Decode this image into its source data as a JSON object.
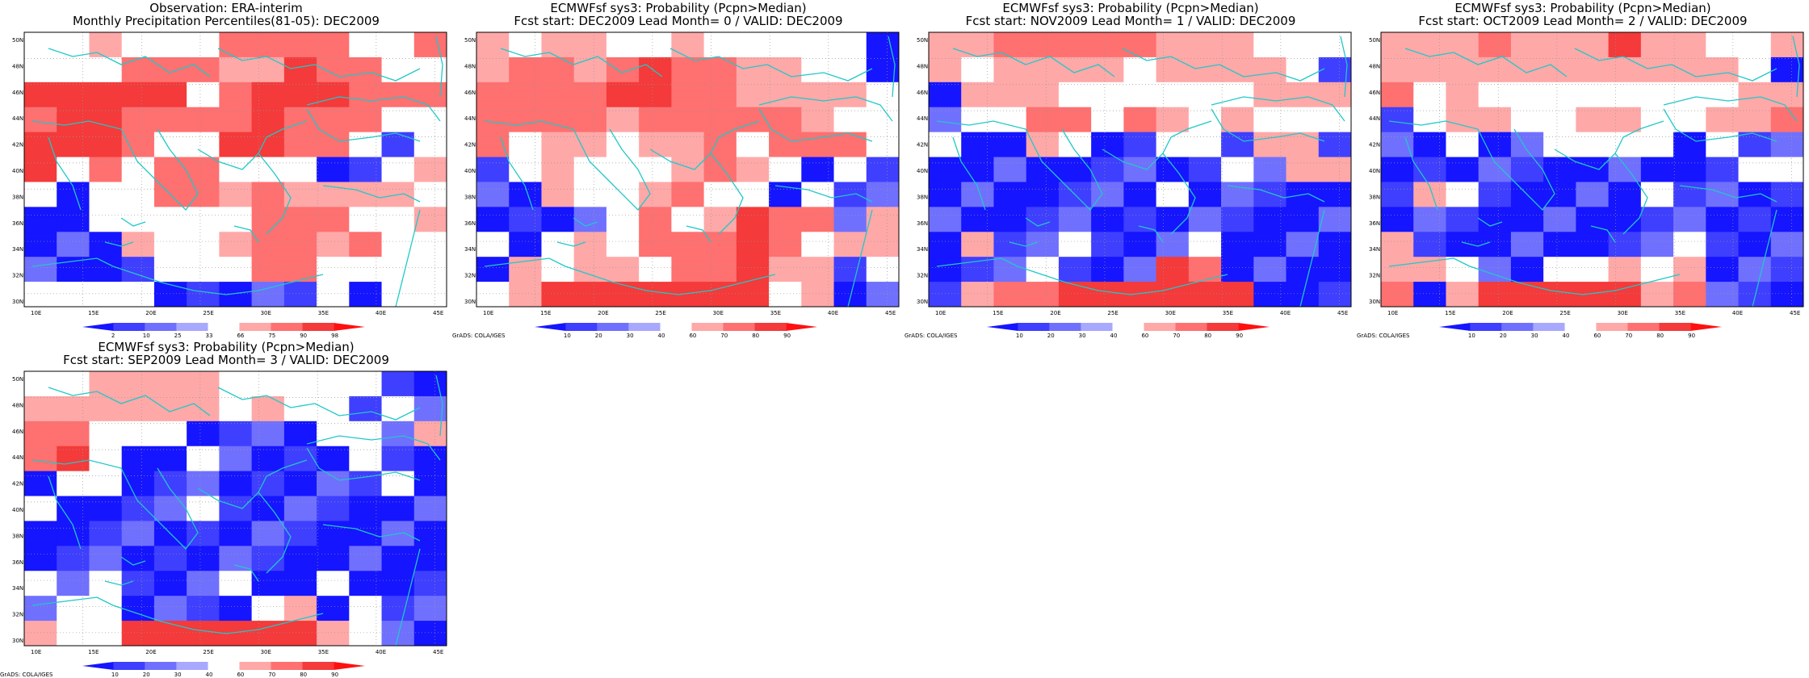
{
  "palette": {
    "deep_blue": "#1515ff",
    "blue": "#3f3fff",
    "med_blue": "#7070ff",
    "light_blue": "#a8a8ff",
    "white": "#ffffff",
    "light_red": "#ffa8a8",
    "med_red": "#ff7070",
    "red": "#f43a3a",
    "deep_red": "#ff1010",
    "coast": "#20c8c8"
  },
  "lat_labels": [
    "50N",
    "48N",
    "46N",
    "44N",
    "42N",
    "40N",
    "38N",
    "36N",
    "34N",
    "32N",
    "30N"
  ],
  "lon_labels": [
    "10E",
    "15E",
    "20E",
    "25E",
    "30E",
    "35E",
    "40E",
    "45E"
  ],
  "credit": "GrADS: COLA/IGES",
  "panels": [
    {
      "id": "obs",
      "title1": "Observation: ERA-interim",
      "title2": "Monthly Precipitation Percentiles(81-05): DEC2009",
      "legend": [
        "2",
        "10",
        "25",
        "33",
        "66",
        "75",
        "90",
        "98"
      ],
      "grid": [
        "AA1AAA2222AA2",
        "AAA22211322AA",
        "33333A2333222",
        "23322223222AA",
        "3332AA3322A0A",
        "3A2A22AAA00A1",
        "A0AA22121111A",
        "00AAAAA222AA1",
        "0001AA12212AA",
        "0000AAA22AAAA",
        "AAAA00000A0AA"
      ]
    },
    {
      "id": "lead0",
      "title1": "ECMWFsf sys3: Probability (Pcpn>Median)",
      "title2": "Fcst start: DEC2009  Lead Month= 0 / VALID: DEC2009",
      "legend": [
        "10",
        "20",
        "30",
        "40",
        "60",
        "70",
        "80",
        "90"
      ],
      "grid": [
        "1A11AA1AAAAA0",
        "1221232211AA0",
        "222233221111A",
        "22221222221AA",
        "2A11A112A222A",
        "0A1AAA121A0A0",
        "001AA12AA0A00",
        "0000A2A132201",
        "A0A1A22232A11",
        "01A11A223110A",
        "A13333333A100"
      ]
    },
    {
      "id": "lead1",
      "title1": "ECMWFsf sys3: Probability (Pcpn>Median)",
      "title2": "Fcst start: NOV2009  Lead Month= 1 / VALID: DEC2009",
      "legend": [
        "10",
        "20",
        "30",
        "40",
        "60",
        "70",
        "80",
        "90"
      ],
      "grid": [
        "1122222111AAA",
        "1A1111A1111A0",
        "0111AAAAAA111",
        "0AA22A21A1AAA",
        "A001A00AA0110",
        "000000000A011",
        "0000000A00000",
        "0000000000000",
        "0100A000A0000",
        "000A000320000",
        "0122333333000"
      ]
    },
    {
      "id": "lead2",
      "title1": "ECMWFsf sys3: Probability (Pcpn>Median)",
      "title2": "Fcst start: OCT2009  Lead Month= 2 / VALID: DEC2009",
      "legend": [
        "10",
        "20",
        "30",
        "40",
        "60",
        "70",
        "80",
        "90"
      ],
      "grid": [
        "1112111311AA1",
        "11111111111A0",
        "2A1AAAAAAAA11",
        "0A11AA11AA112",
        "00A00AAAA0A00",
        "00000000000AA",
        "01A00000A0000",
        "0000000000000",
        "100000000A000",
        "11A00AA1A1000",
        "2013333312000"
      ]
    },
    {
      "id": "lead3",
      "title1": "ECMWFsf sys3: Probability (Pcpn>Median)",
      "title2": "Fcst start: SEP2009  Lead Month= 3 / VALID: DEC2009",
      "legend": [
        "10",
        "20",
        "30",
        "40",
        "60",
        "70",
        "80",
        "90"
      ],
      "grid": [
        "AA1111AAAAA00",
        "111111A1AA0A0",
        "22AAA0000AA01",
        "23A00A0000A00",
        "0AA00000000A0",
        "A0000A0000000",
        "0000000000000",
        "0000000000000",
        "A0A000A00A000",
        "0AA0000A10A00",
        "1AA3333331A00"
      ]
    }
  ]
}
